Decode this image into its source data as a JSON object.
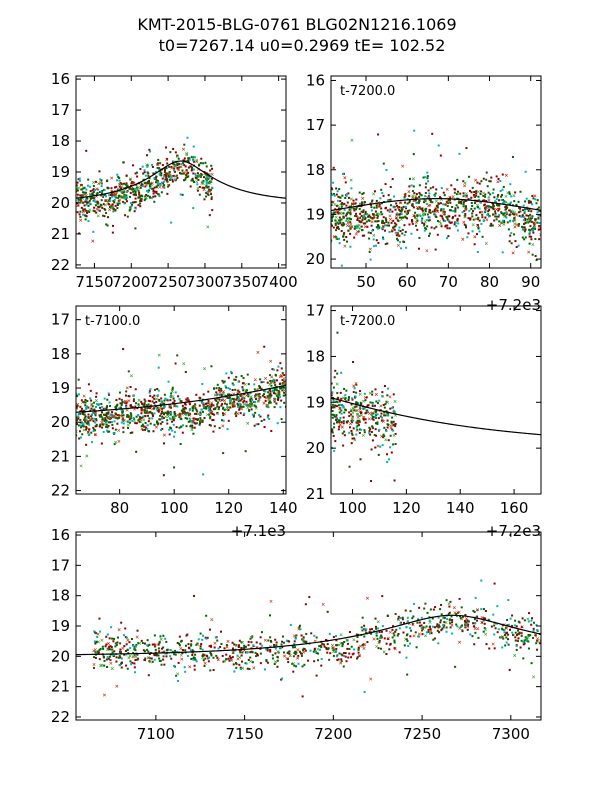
{
  "figure": {
    "title_line1": "KMT-2015-BLG-0761 BLG02N1216.1069",
    "title_line2": "t0=7267.14 u0=0.2969 tE= 102.52"
  },
  "colors": {
    "model": "#000000",
    "series_darkred": "#8b0000",
    "series_darkgreen": "#006400",
    "series_cyan": "#00b3b3",
    "series_red": "#dd2200",
    "series_green": "#22aa22"
  },
  "chart_data": [
    {
      "id": "panel-top-left",
      "type": "scatter",
      "title": "",
      "annotation": "",
      "offset_label": "",
      "xlim": [
        7125,
        7410
      ],
      "ylim": [
        22.1,
        15.9
      ],
      "xticks": [
        7150,
        7200,
        7250,
        7300,
        7350,
        7400
      ],
      "xtick_labels": [
        "7150",
        "7200",
        "7250",
        "7300",
        "7350",
        "7400"
      ],
      "yticks": [
        16,
        17,
        18,
        19,
        20,
        21,
        22
      ],
      "ylabel": "",
      "xlabel": "",
      "model": {
        "t0": 7267.14,
        "u0": 0.2969,
        "tE": 102.52,
        "base_mag": 20.0
      },
      "data_range": [
        7125,
        7310
      ]
    },
    {
      "id": "panel-top-right",
      "type": "scatter",
      "annotation": "t-7200.0",
      "offset_label": "+7.2e3",
      "xlim": [
        7241.5,
        7292.5
      ],
      "ylim": [
        20.2,
        15.9
      ],
      "xticks": [
        7250,
        7260,
        7270,
        7280,
        7290
      ],
      "xtick_labels": [
        "50",
        "60",
        "70",
        "80",
        "90"
      ],
      "yticks": [
        16,
        17,
        18,
        19,
        20
      ],
      "model": {
        "t0": 7267.14,
        "u0": 0.2969,
        "tE": 102.52,
        "base_mag": 20.0
      },
      "data_range": [
        7241.5,
        7292.5
      ]
    },
    {
      "id": "panel-middle-left",
      "type": "scatter",
      "annotation": "t-7100.0",
      "offset_label": "+7.1e3",
      "xlim": [
        7164,
        7241
      ],
      "ylim": [
        22.1,
        16.6
      ],
      "xticks": [
        7180,
        7200,
        7220,
        7240
      ],
      "xtick_labels": [
        "80",
        "100",
        "120",
        "140"
      ],
      "yticks": [
        17,
        18,
        19,
        20,
        21,
        22
      ],
      "model": {
        "t0": 7267.14,
        "u0": 0.2969,
        "tE": 102.52,
        "base_mag": 20.0
      },
      "data_range": [
        7164,
        7241
      ]
    },
    {
      "id": "panel-middle-right",
      "type": "scatter",
      "annotation": "t-7200.0",
      "offset_label": "+7.2e3",
      "xlim": [
        7292,
        7370
      ],
      "ylim": [
        21.0,
        16.9
      ],
      "xticks": [
        7300,
        7320,
        7340,
        7360
      ],
      "xtick_labels": [
        "100",
        "120",
        "140",
        "160"
      ],
      "yticks": [
        17,
        18,
        19,
        20,
        21
      ],
      "model": {
        "t0": 7267.14,
        "u0": 0.2969,
        "tE": 102.52,
        "base_mag": 20.0
      },
      "data_range": [
        7292,
        7316
      ]
    },
    {
      "id": "panel-bottom",
      "type": "scatter",
      "annotation": "",
      "offset_label": "",
      "xlim": [
        7055,
        7317
      ],
      "ylim": [
        22.1,
        15.9
      ],
      "xticks": [
        7100,
        7150,
        7200,
        7250,
        7300
      ],
      "xtick_labels": [
        "7100",
        "7150",
        "7200",
        "7250",
        "7300"
      ],
      "yticks": [
        16,
        17,
        18,
        19,
        20,
        21,
        22
      ],
      "model": {
        "t0": 7267.14,
        "u0": 0.2969,
        "tE": 102.52,
        "base_mag": 20.0
      },
      "data_range": [
        7065,
        7317
      ]
    }
  ]
}
